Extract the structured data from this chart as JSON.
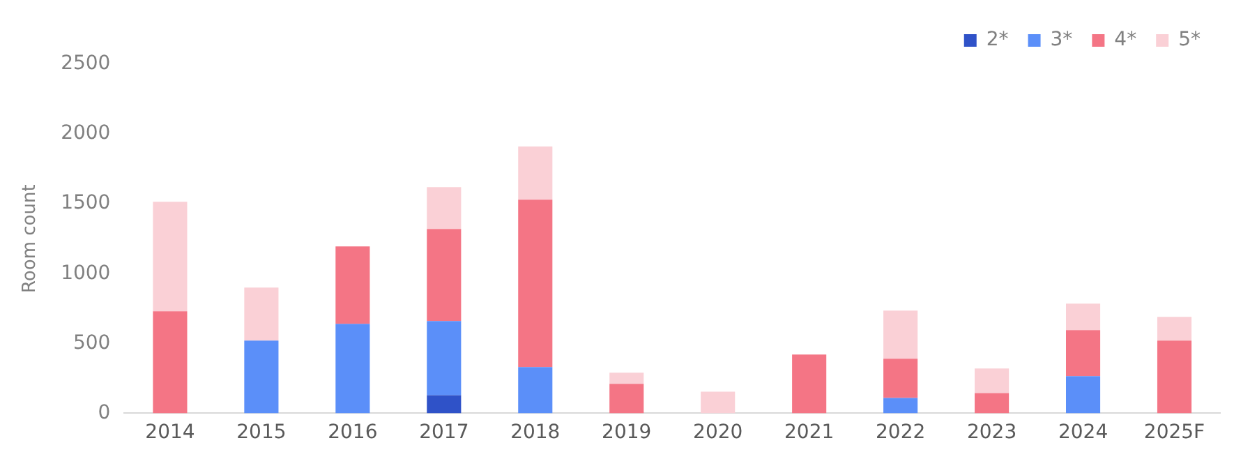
{
  "chart_data": {
    "type": "bar",
    "stacked": true,
    "ylabel": "Room count",
    "categories": [
      "2014",
      "2015",
      "2016",
      "2017",
      "2018",
      "2019",
      "2020",
      "2021",
      "2022",
      "2023",
      "2024",
      "2025F"
    ],
    "series": [
      {
        "name": "2*",
        "color": "#2f52c8",
        "values": [
          null,
          null,
          null,
          130,
          null,
          null,
          null,
          null,
          null,
          null,
          null,
          null
        ]
      },
      {
        "name": "3*",
        "color": "#5b8ff9",
        "values": [
          null,
          520,
          640,
          530,
          330,
          null,
          null,
          null,
          110,
          null,
          265,
          null
        ]
      },
      {
        "name": "4*",
        "color": "#f47585",
        "values": [
          730,
          null,
          555,
          660,
          1200,
          210,
          null,
          420,
          280,
          145,
          330,
          520
        ]
      },
      {
        "name": "5*",
        "color": "#fad0d6",
        "values": [
          785,
          380,
          null,
          300,
          380,
          80,
          155,
          null,
          345,
          175,
          190,
          170
        ]
      }
    ],
    "ylim": [
      0,
      2500
    ],
    "yticks": [
      0,
      500,
      1000,
      1500,
      2000,
      2500
    ],
    "grid": false,
    "legend": "top right"
  }
}
